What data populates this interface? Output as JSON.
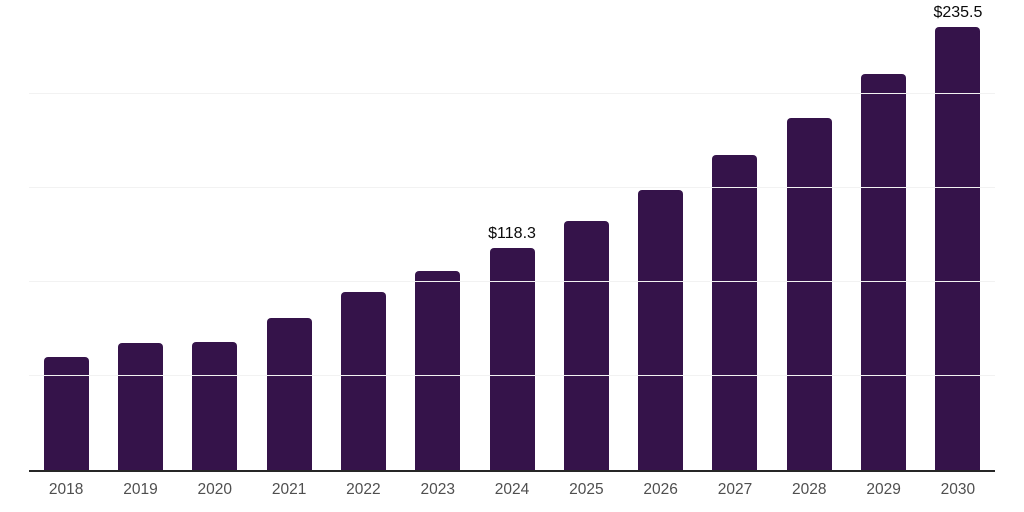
{
  "chart_data": {
    "type": "bar",
    "title": "",
    "xlabel": "",
    "ylabel": "",
    "categories": [
      "2018",
      "2019",
      "2020",
      "2021",
      "2022",
      "2023",
      "2024",
      "2025",
      "2026",
      "2027",
      "2028",
      "2029",
      "2030"
    ],
    "values": [
      60.0,
      67.8,
      68.3,
      81.0,
      94.5,
      106.0,
      118.3,
      132.7,
      149.0,
      167.4,
      187.5,
      210.8,
      235.5
    ],
    "annotations": [
      {
        "category": "2024",
        "text": "$118.3"
      },
      {
        "category": "2030",
        "text": "$235.5"
      }
    ],
    "ylim": [
      0,
      250
    ],
    "gridline_step": 50,
    "grid": true,
    "legend": "none",
    "colors": {
      "bar": "#35134a",
      "axis_line": "#262626",
      "tick_label": "#4f4f4f",
      "value_label": "#0a0a0a",
      "gridline": "#f2f2f2",
      "background": "#ffffff"
    }
  }
}
